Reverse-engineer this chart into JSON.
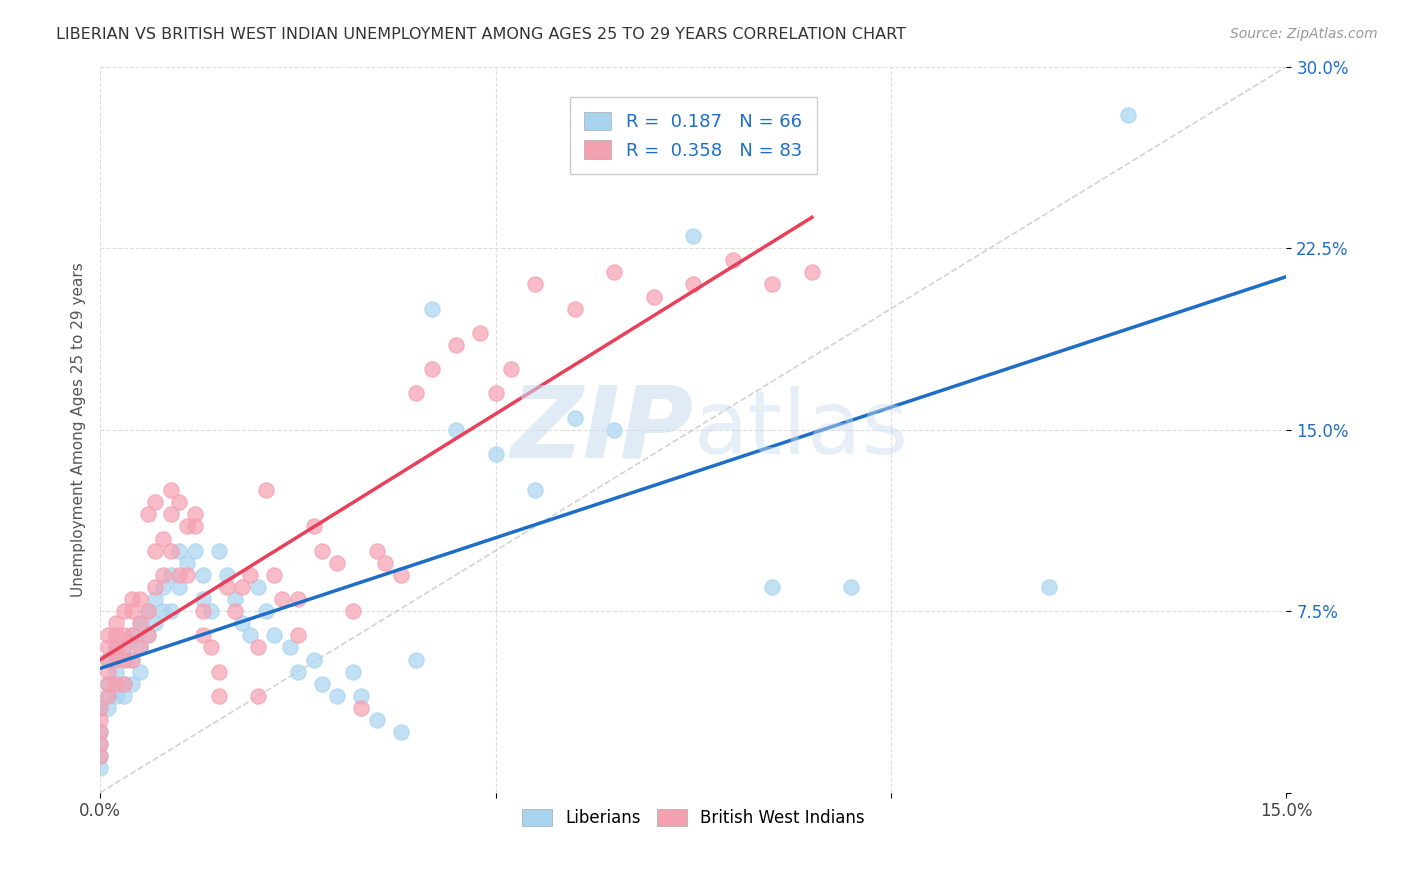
{
  "title": "LIBERIAN VS BRITISH WEST INDIAN UNEMPLOYMENT AMONG AGES 25 TO 29 YEARS CORRELATION CHART",
  "source": "Source: ZipAtlas.com",
  "ylabel": "Unemployment Among Ages 25 to 29 years",
  "xlim": [
    0.0,
    0.15
  ],
  "ylim": [
    0.0,
    0.3
  ],
  "liberian_color": "#A8D4F0",
  "bwi_color": "#F4A0B0",
  "liberian_line_color": "#1E6EC8",
  "bwi_line_color": "#E8405A",
  "diagonal_color": "#C8C8C8",
  "R_liberian": "0.187",
  "N_liberian": "66",
  "R_bwi": "0.358",
  "N_bwi": "83",
  "watermark_zip": "ZIP",
  "watermark_atlas": "atlas",
  "background_color": "#FFFFFF",
  "grid_color": "#DDDDDD",
  "liberian_x": [
    0.0,
    0.0,
    0.0,
    0.0,
    0.0,
    0.001,
    0.001,
    0.001,
    0.001,
    0.002,
    0.002,
    0.002,
    0.003,
    0.003,
    0.003,
    0.003,
    0.004,
    0.004,
    0.004,
    0.005,
    0.005,
    0.005,
    0.006,
    0.006,
    0.007,
    0.007,
    0.008,
    0.008,
    0.009,
    0.009,
    0.01,
    0.01,
    0.011,
    0.012,
    0.013,
    0.013,
    0.014,
    0.015,
    0.016,
    0.017,
    0.018,
    0.019,
    0.02,
    0.021,
    0.022,
    0.024,
    0.025,
    0.027,
    0.028,
    0.03,
    0.032,
    0.033,
    0.035,
    0.038,
    0.04,
    0.042,
    0.045,
    0.05,
    0.055,
    0.06,
    0.065,
    0.075,
    0.085,
    0.095,
    0.12,
    0.13
  ],
  "liberian_y": [
    0.035,
    0.025,
    0.02,
    0.015,
    0.01,
    0.055,
    0.045,
    0.04,
    0.035,
    0.06,
    0.05,
    0.04,
    0.06,
    0.055,
    0.045,
    0.04,
    0.065,
    0.055,
    0.045,
    0.07,
    0.06,
    0.05,
    0.075,
    0.065,
    0.08,
    0.07,
    0.085,
    0.075,
    0.09,
    0.075,
    0.1,
    0.085,
    0.095,
    0.1,
    0.09,
    0.08,
    0.075,
    0.1,
    0.09,
    0.08,
    0.07,
    0.065,
    0.085,
    0.075,
    0.065,
    0.06,
    0.05,
    0.055,
    0.045,
    0.04,
    0.05,
    0.04,
    0.03,
    0.025,
    0.055,
    0.2,
    0.15,
    0.14,
    0.125,
    0.155,
    0.15,
    0.23,
    0.085,
    0.085,
    0.085,
    0.28
  ],
  "bwi_x": [
    0.0,
    0.0,
    0.0,
    0.0,
    0.0,
    0.001,
    0.001,
    0.001,
    0.001,
    0.001,
    0.001,
    0.002,
    0.002,
    0.002,
    0.002,
    0.002,
    0.003,
    0.003,
    0.003,
    0.003,
    0.003,
    0.004,
    0.004,
    0.004,
    0.004,
    0.005,
    0.005,
    0.005,
    0.006,
    0.006,
    0.006,
    0.007,
    0.007,
    0.007,
    0.008,
    0.008,
    0.009,
    0.009,
    0.009,
    0.01,
    0.01,
    0.011,
    0.011,
    0.012,
    0.012,
    0.013,
    0.013,
    0.014,
    0.015,
    0.015,
    0.016,
    0.017,
    0.018,
    0.019,
    0.02,
    0.02,
    0.021,
    0.022,
    0.023,
    0.025,
    0.025,
    0.027,
    0.028,
    0.03,
    0.032,
    0.033,
    0.035,
    0.036,
    0.038,
    0.04,
    0.042,
    0.045,
    0.048,
    0.05,
    0.052,
    0.055,
    0.06,
    0.065,
    0.07,
    0.075,
    0.08,
    0.085,
    0.09
  ],
  "bwi_y": [
    0.035,
    0.03,
    0.025,
    0.02,
    0.015,
    0.065,
    0.06,
    0.055,
    0.05,
    0.045,
    0.04,
    0.07,
    0.065,
    0.06,
    0.055,
    0.045,
    0.075,
    0.065,
    0.06,
    0.055,
    0.045,
    0.08,
    0.075,
    0.065,
    0.055,
    0.08,
    0.07,
    0.06,
    0.115,
    0.075,
    0.065,
    0.12,
    0.1,
    0.085,
    0.105,
    0.09,
    0.125,
    0.115,
    0.1,
    0.12,
    0.09,
    0.11,
    0.09,
    0.115,
    0.11,
    0.075,
    0.065,
    0.06,
    0.05,
    0.04,
    0.085,
    0.075,
    0.085,
    0.09,
    0.06,
    0.04,
    0.125,
    0.09,
    0.08,
    0.08,
    0.065,
    0.11,
    0.1,
    0.095,
    0.075,
    0.035,
    0.1,
    0.095,
    0.09,
    0.165,
    0.175,
    0.185,
    0.19,
    0.165,
    0.175,
    0.21,
    0.2,
    0.215,
    0.205,
    0.21,
    0.22,
    0.21,
    0.215
  ]
}
